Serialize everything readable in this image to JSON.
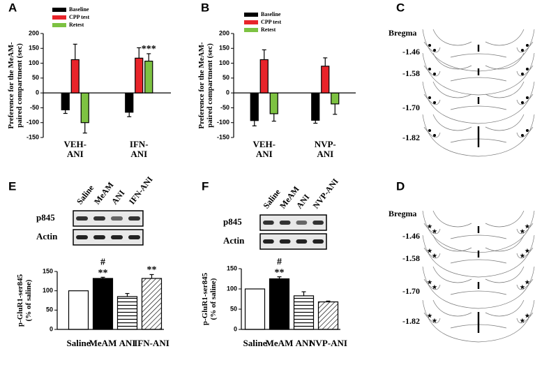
{
  "panel_labels": [
    "A",
    "B",
    "C",
    "E",
    "F",
    "D"
  ],
  "chart_data": [
    {
      "type": "bar",
      "y_label": "Preference for the MeAM-\npaired compartment (sec)",
      "categories": [
        "VEH-\nANI",
        "IFN-\nANI"
      ],
      "series": [
        {
          "name": "Baseline",
          "color": "#000000",
          "values": [
            -57,
            -65
          ],
          "errors": [
            12,
            15
          ],
          "annotations": [
            null,
            null
          ]
        },
        {
          "name": "CPP test",
          "color": "#e8242a",
          "values": [
            112,
            117
          ],
          "errors": [
            52,
            35
          ],
          "annotations": [
            null,
            null
          ]
        },
        {
          "name": "Retest",
          "color": "#7dc242",
          "values": [
            -100,
            107
          ],
          "errors": [
            35,
            25
          ],
          "annotations": [
            null,
            "***"
          ]
        }
      ],
      "ylim": [
        -150,
        200
      ],
      "yticks": [
        -150,
        -100,
        -50,
        0,
        50,
        100,
        150,
        200
      ]
    },
    {
      "type": "bar",
      "y_label": "Preference for the MeAM-\npaired compartment (sec)",
      "categories": [
        "VEH-\nANI",
        "NVP-\nANI"
      ],
      "series": [
        {
          "name": "Baseline",
          "color": "#000000",
          "values": [
            -93,
            -92
          ],
          "errors": [
            18,
            10
          ],
          "annotations": [
            null,
            null
          ]
        },
        {
          "name": "CPP test",
          "color": "#e8242a",
          "values": [
            112,
            90
          ],
          "errors": [
            33,
            28
          ],
          "annotations": [
            null,
            null
          ]
        },
        {
          "name": "Retest",
          "color": "#7dc242",
          "values": [
            -70,
            -37
          ],
          "errors": [
            25,
            35
          ],
          "annotations": [
            null,
            null
          ]
        }
      ],
      "ylim": [
        -150,
        200
      ],
      "yticks": [
        -150,
        -100,
        -50,
        0,
        50,
        100,
        150,
        200
      ]
    },
    {
      "type": "bar",
      "y_label": "p-GluR1-ser845\n(% of saline)",
      "categories": [
        "Saline",
        "MeAM",
        "ANI",
        "IFN-ANI"
      ],
      "values": [
        100,
        132,
        85,
        132
      ],
      "errors": [
        null,
        3,
        8,
        10
      ],
      "colors": [
        "#ffffff",
        "#000000",
        "#ffffff",
        "#ffffff"
      ],
      "patterns": [
        "none",
        "none",
        "horizontal",
        "diagonal"
      ],
      "annotations": [
        null,
        "#\n**",
        null,
        "**"
      ],
      "ylim": [
        0,
        150
      ],
      "yticks": [
        0,
        50,
        100,
        150
      ]
    },
    {
      "type": "bar",
      "y_label": "p-GluR1-ser845\n(% of saline)",
      "categories": [
        "Saline",
        "MeAM",
        "ANI",
        "NVP-ANI"
      ],
      "values": [
        100,
        125,
        83,
        68
      ],
      "errors": [
        null,
        5,
        10,
        2
      ],
      "colors": [
        "#ffffff",
        "#000000",
        "#ffffff",
        "#ffffff"
      ],
      "patterns": [
        "none",
        "none",
        "horizontal",
        "diagonal"
      ],
      "annotations": [
        null,
        "#\n**",
        null,
        null
      ],
      "ylim": [
        0,
        150
      ],
      "yticks": [
        0,
        50,
        100,
        150
      ]
    }
  ],
  "blot_e": {
    "lanes": [
      "Saline",
      "MeAM",
      "ANI",
      "IFN-ANI"
    ],
    "rows": [
      "p845",
      "Actin"
    ]
  },
  "blot_f": {
    "lanes": [
      "Saline",
      "MeAM",
      "ANI",
      "NVP-ANI"
    ],
    "rows": [
      "p845",
      "Actin"
    ]
  },
  "panel_c": {
    "title": "Bregma",
    "levels": [
      "-1.46",
      "-1.58",
      "-1.70",
      "-1.82"
    ]
  },
  "panel_d": {
    "title": "Bregma",
    "levels": [
      "-1.46",
      "-1.58",
      "-1.70",
      "-1.82"
    ]
  }
}
